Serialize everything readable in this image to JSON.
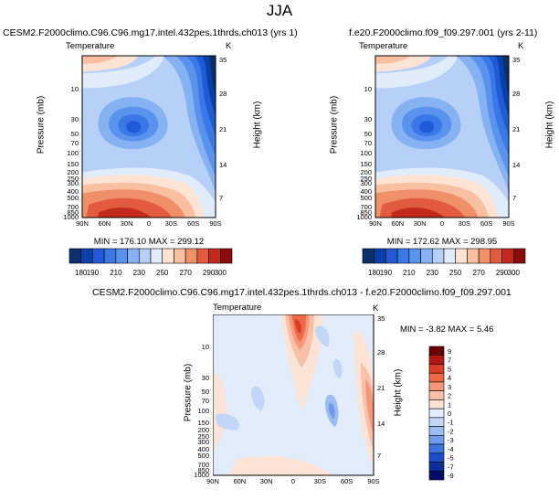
{
  "page": {
    "season_title": "JJA"
  },
  "panels": [
    {
      "id": "model",
      "title": "CESM2.F2000climo.C96.C96.mg17.intel.432pes.1thrds.ch013 (yrs 1)",
      "variable": "Temperature",
      "units": "K",
      "stats": "MIN = 176.10  MAX = 299.12"
    },
    {
      "id": "obs",
      "title": "f.e20.F2000climo.f09_f09.297.001 (yrs 2-11)",
      "variable": "Temperature",
      "units": "K",
      "stats": "MIN = 172.62  MAX = 298.95"
    },
    {
      "id": "diff",
      "title": "CESM2.F2000climo.C96.C96.mg17.intel.432pes.1thrds.ch013 - f.e20.F2000climo.f09_f09.297.001",
      "variable": "Temperature",
      "units": "K",
      "stats": "MIN =  -3.82  MAX =   5.46"
    }
  ],
  "chart_data": [
    {
      "type": "heatmap",
      "title": "CESM2.F2000climo.C96.C96.mg17.intel.432pes.1thrds.ch013 (yrs 1)",
      "variable": "Temperature",
      "units": "K",
      "xlabel": "",
      "ylabel": "Pressure (mb)",
      "y2label": "Height (km)",
      "x_ticks": [
        "90N",
        "60N",
        "30N",
        "0",
        "30S",
        "60S",
        "90S"
      ],
      "y_ticks": [
        "10",
        "30",
        "50",
        "70",
        "100",
        "150",
        "200",
        "250",
        "300",
        "400",
        "500",
        "700",
        "850",
        "1000"
      ],
      "y2_ticks": [
        "35",
        "28",
        "21",
        "14",
        "7"
      ],
      "y_scale": "log",
      "colorbar_levels": [
        180,
        190,
        200,
        210,
        220,
        230,
        240,
        250,
        260,
        270,
        280,
        290,
        300
      ],
      "colorbar_labels": [
        "180",
        "190",
        "210",
        "230",
        "250",
        "270",
        "290",
        "300"
      ],
      "min": 176.1,
      "max": 299.12
    },
    {
      "type": "heatmap",
      "title": "f.e20.F2000climo.f09_f09.297.001 (yrs 2-11)",
      "variable": "Temperature",
      "units": "K",
      "xlabel": "",
      "ylabel": "Pressure (mb)",
      "y2label": "Height (km)",
      "x_ticks": [
        "90N",
        "60N",
        "30N",
        "0",
        "30S",
        "60S",
        "90S"
      ],
      "y_ticks": [
        "10",
        "30",
        "50",
        "70",
        "100",
        "150",
        "200",
        "250",
        "300",
        "400",
        "500",
        "700",
        "850",
        "1000"
      ],
      "y2_ticks": [
        "35",
        "28",
        "21",
        "14",
        "7"
      ],
      "y_scale": "log",
      "colorbar_levels": [
        180,
        190,
        200,
        210,
        220,
        230,
        240,
        250,
        260,
        270,
        280,
        290,
        300
      ],
      "colorbar_labels": [
        "180",
        "190",
        "210",
        "230",
        "250",
        "270",
        "290",
        "300"
      ],
      "min": 172.62,
      "max": 298.95
    },
    {
      "type": "heatmap",
      "title": "CESM2.F2000climo.C96.C96.mg17.intel.432pes.1thrds.ch013 - f.e20.F2000climo.f09_f09.297.001",
      "variable": "Temperature",
      "units": "K",
      "xlabel": "",
      "ylabel": "Pressure (mb)",
      "y2label": "Height (km)",
      "x_ticks": [
        "90N",
        "60N",
        "30N",
        "0",
        "30S",
        "60S",
        "90S"
      ],
      "y_ticks": [
        "10",
        "30",
        "50",
        "70",
        "100",
        "150",
        "200",
        "250",
        "300",
        "400",
        "500",
        "700",
        "850",
        "1000"
      ],
      "y2_ticks": [
        "35",
        "28",
        "21",
        "14",
        "7"
      ],
      "y_scale": "log",
      "colorbar_levels": [
        9,
        7,
        5,
        4,
        3,
        2,
        1,
        0,
        -1,
        -2,
        -3,
        -4,
        -5,
        -7,
        -9
      ],
      "colorbar_labels": [
        "9",
        "7",
        "5",
        "4",
        "3",
        "2",
        "1",
        "0",
        "-1",
        "-2",
        "-3",
        "-4",
        "-5",
        "-7",
        "-9"
      ],
      "min": -3.82,
      "max": 5.46
    }
  ],
  "colors": {
    "abs_palette": [
      "#08306b",
      "#0a3fa8",
      "#1f5bd6",
      "#3a78e8",
      "#5a93ee",
      "#86b1f2",
      "#b7d0f7",
      "#e1ecfb",
      "#fde3d4",
      "#f9bfa1",
      "#f0906b",
      "#e25b3f",
      "#c32a1c",
      "#8c0a0a"
    ],
    "diff_palette": [
      "#6b0000",
      "#b4150f",
      "#dc3b24",
      "#ec6a46",
      "#f5977a",
      "#f8c0a8",
      "#fde2d6",
      "#e3ecfb",
      "#c2d6f7",
      "#9dbcf1",
      "#6f9be9",
      "#3d74df",
      "#1b4fc9",
      "#0a2e9a",
      "#040c6b"
    ]
  }
}
